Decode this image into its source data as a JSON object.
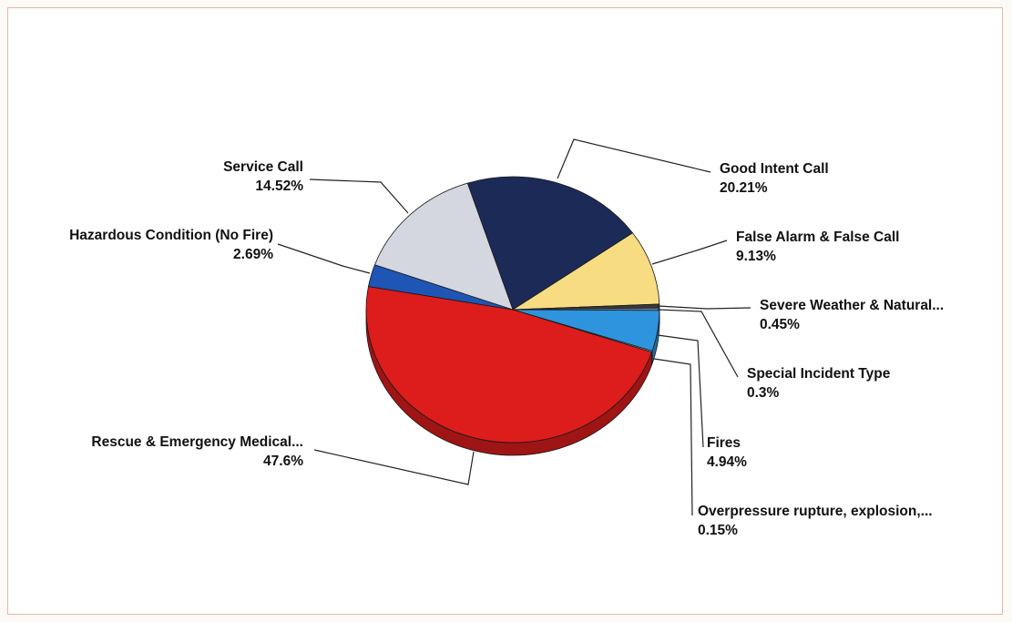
{
  "chart_data": {
    "type": "pie",
    "title": "",
    "slices": [
      {
        "label": "Good Intent Call",
        "value_label": "20.21%",
        "value": 20.21,
        "color": "#1b2a57"
      },
      {
        "label": "False Alarm & False Call",
        "value_label": "9.13%",
        "value": 9.13,
        "color": "#f7dc82"
      },
      {
        "label": "Severe Weather & Natural...",
        "value_label": "0.45%",
        "value": 0.45,
        "color": "#3a3a3a"
      },
      {
        "label": "Special Incident Type",
        "value_label": "0.3%",
        "value": 0.3,
        "color": "#6a7fa8"
      },
      {
        "label": "Fires",
        "value_label": "4.94%",
        "value": 4.94,
        "color": "#2d94dd"
      },
      {
        "label": "Overpressure rupture, explosion,...",
        "value_label": "0.15%",
        "value": 0.15,
        "color": "#b0b0b0"
      },
      {
        "label": "Rescue & Emergency Medical...",
        "value_label": "47.6%",
        "value": 47.6,
        "color": "#dd1c1c"
      },
      {
        "label": "Hazardous Condition (No Fire)",
        "value_label": "2.69%",
        "value": 2.69,
        "color": "#1f56b5"
      },
      {
        "label": "Service Call",
        "value_label": "14.52%",
        "value": 14.52,
        "color": "#d4d6e0"
      }
    ],
    "legend": "none",
    "effect": "3d-tilted"
  }
}
